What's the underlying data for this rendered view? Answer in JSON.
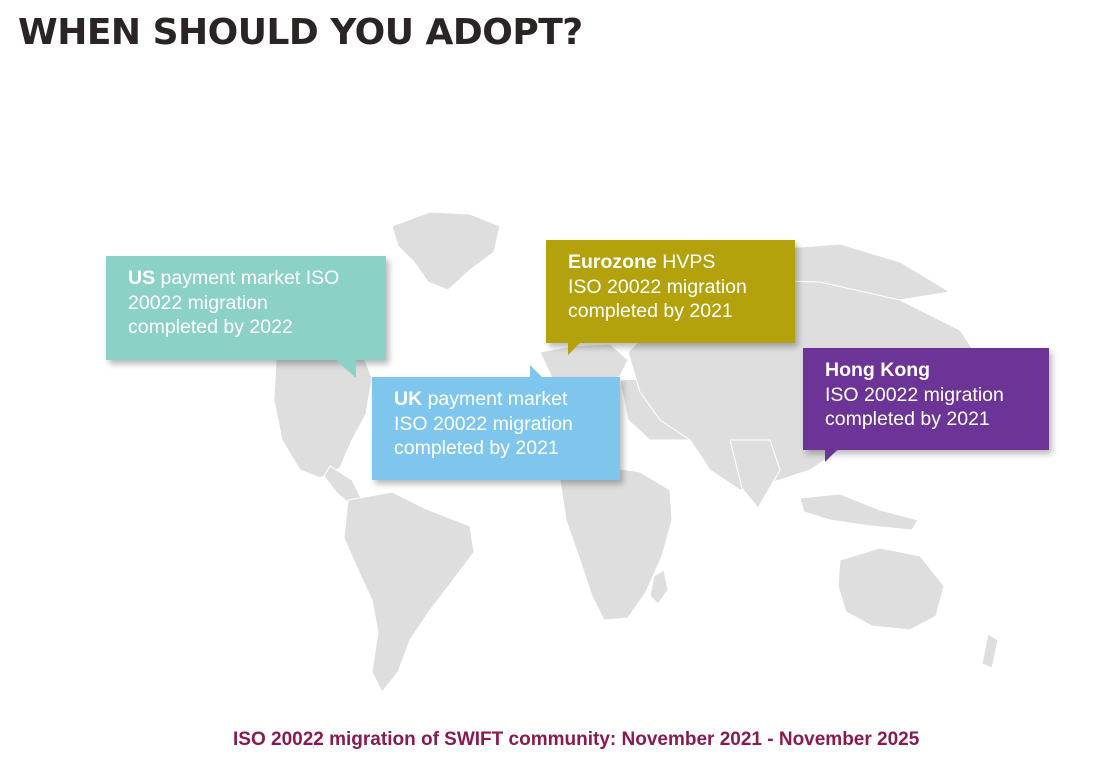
{
  "title": "WHEN SHOULD YOU ADOPT?",
  "callouts": {
    "us": {
      "bold": "US",
      "line1_rest": " payment market ISO",
      "line2": "20022 migration",
      "line3": "completed by 2022",
      "color": "#8bd1c6"
    },
    "uk": {
      "bold": "UK",
      "line1_rest": " payment market",
      "line2": "ISO 20022 migration",
      "line3": "completed by 2021",
      "color": "#7fc6ee"
    },
    "eurozone": {
      "bold": "Eurozone",
      "line1_rest": " HVPS",
      "line2": "ISO 20022 migration",
      "line3": "completed by 2021",
      "color": "#b4a20c"
    },
    "hongkong": {
      "bold": "Hong Kong",
      "line1_rest": "",
      "line2": "ISO 20022 migration",
      "line3": "completed by 2021",
      "color": "#6b3496"
    }
  },
  "footer": "ISO 20022 migration of SWIFT community: November 2021 - November 2025",
  "colors": {
    "map_land": "#dedede",
    "title": "#2b2424",
    "footer": "#8a1a4f"
  }
}
